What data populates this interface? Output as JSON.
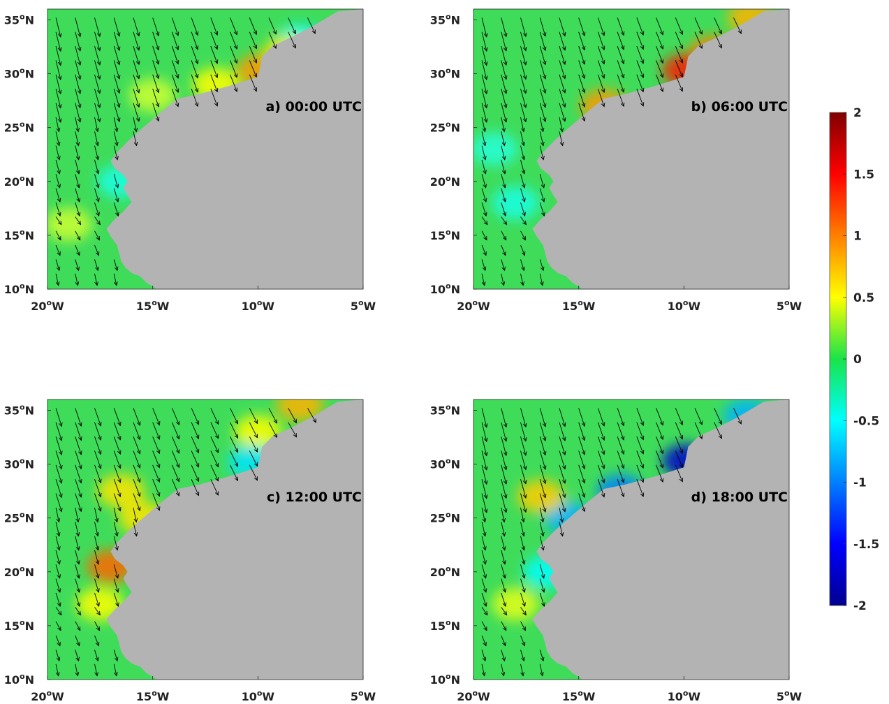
{
  "figure": {
    "x_ticks": [
      {
        "value": -20,
        "label": "20"
      },
      {
        "value": -15,
        "label": "15"
      },
      {
        "value": -10,
        "label": "10"
      },
      {
        "value": -5,
        "label": "5"
      }
    ],
    "x_tick_suffix": "W",
    "y_ticks": [
      {
        "value": 10,
        "label": "10"
      },
      {
        "value": 15,
        "label": "15"
      },
      {
        "value": 20,
        "label": "20"
      },
      {
        "value": 25,
        "label": "25"
      },
      {
        "value": 30,
        "label": "30"
      },
      {
        "value": 35,
        "label": "35"
      }
    ],
    "y_tick_suffix": "N",
    "degree_symbol": "o",
    "lon_range": [
      -20,
      -5
    ],
    "lat_range": [
      10,
      36
    ],
    "land_color": "#b3b3b3",
    "vector_color": "#000000",
    "panels": [
      {
        "label": "a) 00:00 UTC",
        "anomaly": [
          {
            "lat": 33,
            "lon": -8,
            "value": -0.5
          },
          {
            "lat": 30.3,
            "lon": -9.9,
            "value": 0.9
          },
          {
            "lat": 32.0,
            "lon": -8.6,
            "value": 0.6
          },
          {
            "lat": 29.0,
            "lon": -12.0,
            "value": 0.5
          },
          {
            "lat": 28,
            "lon": -15,
            "value": 0.3
          },
          {
            "lat": 20,
            "lon": -16.5,
            "value": -0.4
          },
          {
            "lat": 16,
            "lon": -19,
            "value": 0.3
          }
        ]
      },
      {
        "label": "b) 06:00 UTC",
        "anomaly": [
          {
            "lat": 35.2,
            "lon": -6.8,
            "value": 0.8
          },
          {
            "lat": 32.0,
            "lon": -8.6,
            "value": 1.0
          },
          {
            "lat": 30.3,
            "lon": -9.9,
            "value": 1.4
          },
          {
            "lat": 27.0,
            "lon": -13.8,
            "value": 0.9
          },
          {
            "lat": 23,
            "lon": -19,
            "value": -0.35
          },
          {
            "lat": 18,
            "lon": -18,
            "value": -0.4
          }
        ]
      },
      {
        "label": "c) 12:00 UTC",
        "anomaly": [
          {
            "lat": 35.5,
            "lon": -8,
            "value": 0.8
          },
          {
            "lat": 33,
            "lon": -10,
            "value": 0.5
          },
          {
            "lat": 30.2,
            "lon": -10.3,
            "value": -0.6
          },
          {
            "lat": 27.5,
            "lon": -16.5,
            "value": 0.6
          },
          {
            "lat": 25,
            "lon": -15.5,
            "value": 0.6
          },
          {
            "lat": 20.5,
            "lon": -17,
            "value": 1.1
          },
          {
            "lat": 17,
            "lon": -17.5,
            "value": 0.5
          }
        ]
      },
      {
        "label": "d) 18:00 UTC",
        "anomaly": [
          {
            "lat": 34.5,
            "lon": -7,
            "value": -0.8
          },
          {
            "lat": 30.3,
            "lon": -9.9,
            "value": -1.7
          },
          {
            "lat": 27.5,
            "lon": -13,
            "value": -1.0
          },
          {
            "lat": 25,
            "lon": -15.5,
            "value": -0.8
          },
          {
            "lat": 27,
            "lon": -16.8,
            "value": 0.7
          },
          {
            "lat": 20,
            "lon": -16.5,
            "value": -0.5
          },
          {
            "lat": 17,
            "lon": -18,
            "value": 0.4
          }
        ]
      }
    ],
    "colorbar": {
      "range": [
        -2,
        2
      ],
      "ticks": [
        "2",
        "1.5",
        "1",
        "0.5",
        "0",
        "-0.5",
        "-1",
        "-1.5",
        "-2"
      ]
    }
  },
  "chart_data": {
    "type": "heatmap",
    "x_range": [
      -20,
      -5
    ],
    "y_range": [
      10,
      36
    ],
    "colorbar_range": [
      -2,
      2
    ],
    "panels": [
      "a) 00:00 UTC",
      "b) 06:00 UTC",
      "c) 12:00 UTC",
      "d) 18:00 UTC"
    ]
  }
}
